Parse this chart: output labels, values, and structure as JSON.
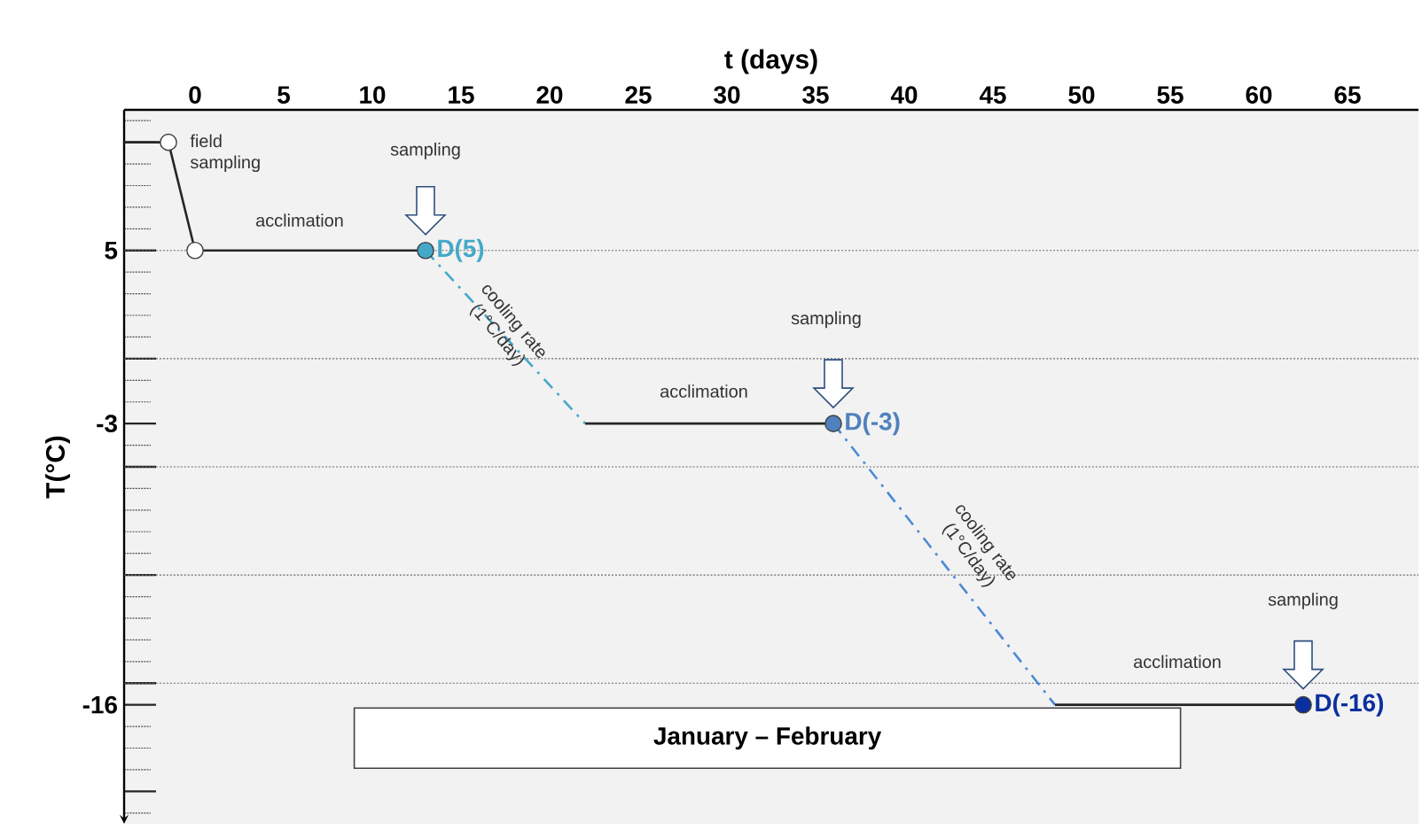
{
  "chart_data": {
    "type": "line",
    "xlabel": "t (days)",
    "ylabel": "T(°C)",
    "xlim": [
      -4,
      69
    ],
    "xticks": [
      0,
      5,
      10,
      15,
      20,
      25,
      30,
      35,
      40,
      45,
      50,
      55,
      60,
      65
    ],
    "ylim": [
      -21.5,
      11.5
    ],
    "yticks": [
      {
        "value": 10,
        "label": null
      },
      {
        "value": 5,
        "label": "5"
      },
      {
        "value": 0,
        "label": null
      },
      {
        "value": -3,
        "label": "-3"
      },
      {
        "value": -5,
        "label": null
      },
      {
        "value": -10,
        "label": null
      },
      {
        "value": -15,
        "label": null
      },
      {
        "value": -16,
        "label": "-16"
      },
      {
        "value": -20,
        "label": null
      }
    ],
    "series": [
      {
        "color": "#262626",
        "line_style": "solid",
        "x": [
          -4,
          -1.5,
          0,
          13
        ],
        "values": [
          10,
          10,
          5,
          5
        ]
      },
      {
        "color": "#45a8c8",
        "line_style": "dashed",
        "x": [
          13,
          22
        ],
        "values": [
          5,
          -3
        ]
      },
      {
        "color": "#262626",
        "line_style": "solid",
        "x": [
          22,
          36
        ],
        "values": [
          -3,
          -3
        ]
      },
      {
        "color": "#4a8ad6",
        "line_style": "dashed",
        "x": [
          36,
          48.5
        ],
        "values": [
          -3,
          -16
        ]
      },
      {
        "color": "#262626",
        "line_style": "solid",
        "x": [
          48.5,
          62.5
        ],
        "values": [
          -16,
          -16
        ]
      },
      {
        "type": "scatter",
        "marker": "circle",
        "color": "#ffffff",
        "x": [
          -1.5,
          0
        ],
        "values": [
          10,
          5
        ]
      },
      {
        "type": "scatter",
        "marker": "circle",
        "name": "D(5)",
        "color": "#45a8c8",
        "x": [
          13
        ],
        "values": [
          5
        ]
      },
      {
        "type": "scatter",
        "marker": "circle",
        "name": "D(-3)",
        "color": "#4f81bd",
        "x": [
          36
        ],
        "values": [
          -3
        ]
      },
      {
        "type": "scatter",
        "marker": "circle",
        "name": "D(-16)",
        "color": "#0a2f9e",
        "x": [
          62.5
        ],
        "values": [
          -16
        ]
      }
    ],
    "ref_lines": [
      {
        "axis": "y",
        "value": 5,
        "color": "#666666",
        "line_style": "dotted"
      },
      {
        "axis": "y",
        "value": 0,
        "color": "#666666",
        "line_style": "dotted"
      },
      {
        "axis": "y",
        "value": -5,
        "color": "#666666",
        "line_style": "dotted"
      },
      {
        "axis": "y",
        "value": -10,
        "color": "#666666",
        "line_style": "dotted"
      },
      {
        "axis": "y",
        "value": -15,
        "color": "#666666",
        "line_style": "dotted"
      }
    ],
    "annotations": [
      "field sampling",
      "sampling",
      "acclimation",
      "cooling rate (1°C/day)",
      "sampling",
      "acclimation",
      "cooling rate (1°C/day)",
      "sampling",
      "acclimation",
      "January – February"
    ]
  }
}
